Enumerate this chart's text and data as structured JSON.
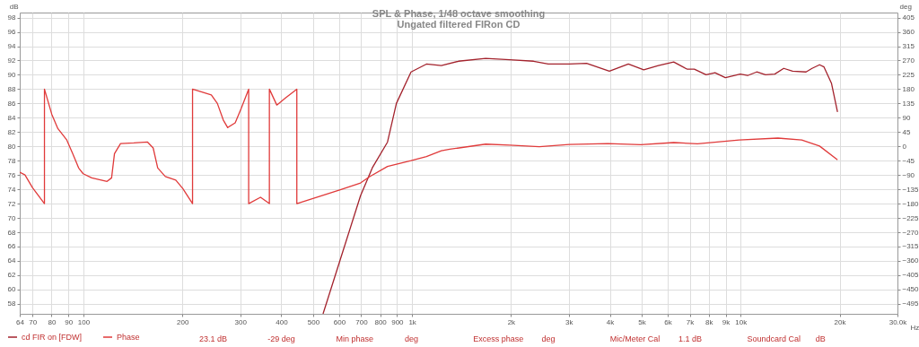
{
  "chart_data": {
    "type": "line",
    "title": "SPL & Phase, 1/48 octave smoothing",
    "subtitle": "Ungated filtered FIRon CD",
    "xlabel": "Hz",
    "ylabel": "dB",
    "y2label": "deg",
    "xlim": [
      64,
      30000
    ],
    "xticks": [
      64,
      70,
      80,
      90,
      100,
      200,
      300,
      400,
      500,
      600,
      700,
      800,
      900,
      {
        "value": 1000,
        "label": "1k"
      },
      {
        "value": 2000,
        "label": "2k"
      },
      {
        "value": 3000,
        "label": "3k"
      },
      {
        "value": 4000,
        "label": "4k"
      },
      {
        "value": 5000,
        "label": "5k"
      },
      {
        "value": 6000,
        "label": "6k"
      },
      {
        "value": 7000,
        "label": "7k"
      },
      {
        "value": 8000,
        "label": "8k"
      },
      {
        "value": 9000,
        "label": "9k"
      },
      {
        "value": 10000,
        "label": "10k"
      },
      {
        "value": 20000,
        "label": "20k"
      },
      {
        "value": 30000,
        "label": "30.0k"
      }
    ],
    "ylim": [
      56.6,
      98.7
    ],
    "yticks": [
      58,
      60,
      62,
      64,
      66,
      68,
      70,
      72,
      74,
      76,
      78,
      80,
      82,
      84,
      86,
      88,
      90,
      92,
      94,
      96,
      98
    ],
    "y2lim": [
      -526.5,
      420.75
    ],
    "y2ticks": [
      -495,
      -450,
      -405,
      -360,
      -315,
      -270,
      -225,
      -180,
      -135,
      -90,
      -45,
      0,
      45,
      90,
      135,
      180,
      225,
      270,
      315,
      360,
      405
    ],
    "log": "x",
    "grid": true,
    "legend": "bottom",
    "marker": "none",
    "line_style": "solid",
    "series": [
      {
        "name": "cd FIR on [FDW]",
        "color": "#a3222c",
        "x": [
          536,
          602,
          697,
          757,
          842,
          896,
          993,
          1106,
          1228,
          1385,
          1675,
          1982,
          2343,
          2597,
          3006,
          3397,
          3985,
          4552,
          5070,
          5617,
          6256,
          6863,
          7227,
          7849,
          8355,
          8984,
          9970,
          10500,
          11190,
          11900,
          12700,
          13520,
          14390,
          15810,
          16490,
          17380,
          17930,
          18900,
          19710
        ],
        "values": [
          56.6,
          63.9,
          73.1,
          77.0,
          80.6,
          86.0,
          90.4,
          91.5,
          91.3,
          91.9,
          92.3,
          92.1,
          91.9,
          91.5,
          91.5,
          91.6,
          90.5,
          91.5,
          90.7,
          91.3,
          91.8,
          90.8,
          90.8,
          90.0,
          90.3,
          89.6,
          90.1,
          89.9,
          90.4,
          90.0,
          90.1,
          90.9,
          90.5,
          90.4,
          90.9,
          91.4,
          91.1,
          88.8,
          84.8
        ]
      },
      {
        "name": "Phase",
        "color": "#e03a3a",
        "axis": "y2",
        "x": [
          64,
          66.4,
          70,
          76.1,
          76.1,
          80.1,
          83.6,
          89,
          92.8,
          96.7,
          99.8,
          106,
          118,
          121.8,
          124.3,
          129.7,
          142.4,
          156.5,
          163,
          168.3,
          177.5,
          191,
          200.7,
          214.8,
          214.8,
          245,
          255.6,
          266.4,
          274.8,
          289.6,
          302,
          318.3,
          318.3,
          345.8,
          368,
          368,
          387.6,
          412.7,
          446,
          446,
          602,
          697,
          743,
          842,
          993,
          1106,
          1228,
          1303,
          1675,
          1982,
          2440,
          3006,
          3945,
          4966,
          6256,
          7388,
          9890,
          12980,
          15340,
          17380,
          19710
        ],
        "values": [
          -81,
          -90,
          -130,
          -180,
          180,
          101,
          56,
          20,
          -23,
          -68,
          -86,
          -99,
          -110,
          -99,
          -23,
          9,
          11,
          14,
          -5,
          -68,
          -95,
          -106,
          -133,
          -180,
          180,
          162,
          135,
          83,
          59,
          74,
          119,
          180,
          -180,
          -160,
          -180,
          180,
          130,
          153,
          180,
          -180,
          -137,
          -115,
          -95,
          -63,
          -45,
          -32,
          -14,
          -9,
          7,
          4,
          -1,
          6,
          9,
          5,
          12,
          8,
          20,
          26,
          20,
          1,
          -42
        ]
      }
    ],
    "annotations": [
      "23.1 dB",
      "-29 deg",
      "Min phase",
      "deg",
      "Excess phase",
      "deg",
      "Mic/Meter Cal",
      "1.1 dB",
      "Soundcard Cal",
      "dB"
    ]
  }
}
